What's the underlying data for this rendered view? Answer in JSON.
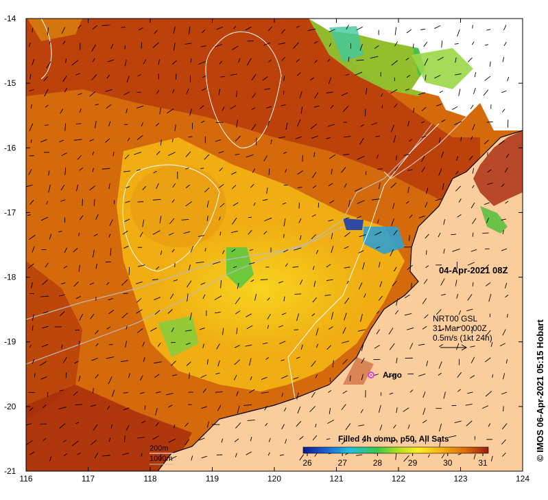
{
  "map": {
    "date_label": "04-Apr-2021 08Z",
    "current_source": {
      "line1": "NRT00 GSL",
      "line2": "31-Mar 00:00Z",
      "line3": "0.5m/s (1kt 24h)"
    },
    "argo_label": "Argo",
    "credit": "© IMOS 06-Apr-2021 05:15 Hobart",
    "depth_legend": [
      "200m",
      "1000m"
    ],
    "colorbar": {
      "title": "Filled 4h comp, p50, All Sats",
      "ticks": [
        "26",
        "27",
        "28",
        "29",
        "30",
        "31"
      ]
    },
    "lon_ticks": [
      "116",
      "117",
      "118",
      "119",
      "120",
      "121",
      "122",
      "123",
      "124"
    ],
    "lat_ticks": [
      "-14",
      "-15",
      "-16",
      "-17",
      "-18",
      "-19",
      "-20",
      "-21"
    ],
    "colors": {
      "land": "#fccd9c",
      "ocean_warm": "#d66a0a",
      "ocean_hot": "#b8360c",
      "ocean_cool": "#f6c013",
      "argo": "#e040e0",
      "contour_200m": "#ffffff",
      "contour_1000m": "#bbbbbb"
    }
  }
}
